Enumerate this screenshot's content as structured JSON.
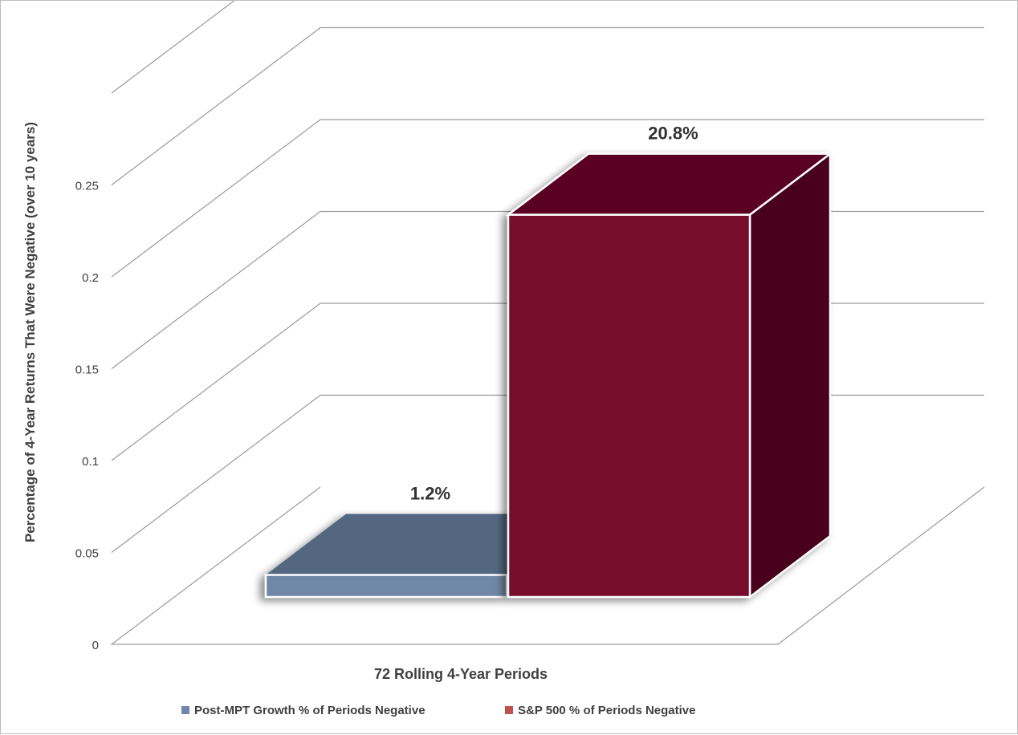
{
  "chart_data": {
    "type": "bar",
    "subtype": "3d-clustered",
    "title": "",
    "xlabel": "72 Rolling 4-Year Periods",
    "ylabel": "Percentage of 4-Year  Returns That Were Negative (over 10 years)",
    "ylim": [
      0,
      0.3
    ],
    "yticks": [
      "0",
      "0.05",
      "0.1",
      "0.15",
      "0.2",
      "0.25"
    ],
    "grid": true,
    "legend_position": "bottom",
    "categories": [
      ""
    ],
    "series": [
      {
        "name": "Post-MPT Growth % of Periods Negative",
        "values": [
          0.012
        ],
        "data_label": "1.2%",
        "color": "#6f87a6",
        "top_color": "#536780",
        "side_color": "#3f4f63"
      },
      {
        "name": "S&P 500 % of Periods Negative",
        "values": [
          0.208
        ],
        "data_label": "20.8%",
        "color": "#760c2b",
        "top_color": "#5a0620",
        "side_color": "#4a051b"
      }
    ],
    "legend_swatch_colors": [
      "#7086a8",
      "#c0504d"
    ]
  }
}
